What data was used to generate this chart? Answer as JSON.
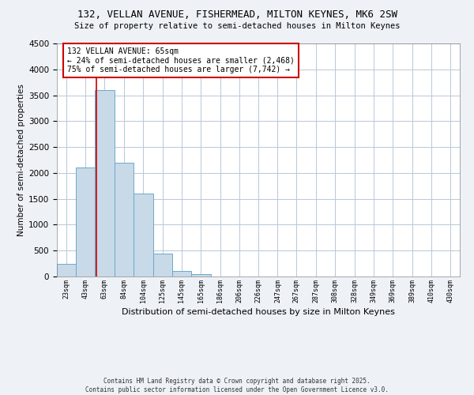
{
  "title1": "132, VELLAN AVENUE, FISHERMEAD, MILTON KEYNES, MK6 2SW",
  "title2": "Size of property relative to semi-detached houses in Milton Keynes",
  "xlabel": "Distribution of semi-detached houses by size in Milton Keynes",
  "ylabel": "Number of semi-detached properties",
  "categories": [
    "23sqm",
    "43sqm",
    "63sqm",
    "84sqm",
    "104sqm",
    "125sqm",
    "145sqm",
    "165sqm",
    "186sqm",
    "206sqm",
    "226sqm",
    "247sqm",
    "267sqm",
    "287sqm",
    "308sqm",
    "328sqm",
    "349sqm",
    "369sqm",
    "389sqm",
    "410sqm",
    "430sqm"
  ],
  "bar_lefts": [
    23,
    43,
    63,
    84,
    104,
    125,
    145,
    165,
    186,
    206,
    226,
    247,
    267,
    287,
    308,
    328,
    349,
    369,
    389,
    410,
    430
  ],
  "bar_widths": [
    20,
    20,
    21,
    20,
    21,
    20,
    20,
    21,
    20,
    20,
    21,
    20,
    20,
    21,
    20,
    21,
    20,
    20,
    21,
    20,
    20
  ],
  "bar_heights": [
    250,
    2100,
    3600,
    2200,
    1600,
    450,
    100,
    50,
    0,
    0,
    0,
    0,
    0,
    0,
    0,
    0,
    0,
    0,
    0,
    0,
    0
  ],
  "bar_color": "#c8d9e8",
  "bar_edgecolor": "#6fa8c8",
  "property_line_x": 65,
  "property_line_color": "#cc0000",
  "annotation_title": "132 VELLAN AVENUE: 65sqm",
  "annotation_line1": "← 24% of semi-detached houses are smaller (2,468)",
  "annotation_line2": "75% of semi-detached houses are larger (7,742) →",
  "annotation_box_edgecolor": "#cc0000",
  "ylim": [
    0,
    4500
  ],
  "xlim": [
    23,
    450
  ],
  "yticks": [
    0,
    500,
    1000,
    1500,
    2000,
    2500,
    3000,
    3500,
    4000,
    4500
  ],
  "footer1": "Contains HM Land Registry data © Crown copyright and database right 2025.",
  "footer2": "Contains public sector information licensed under the Open Government Licence v3.0.",
  "background_color": "#eef2f7",
  "plot_bg_color": "#ffffff",
  "grid_color": "#b8c8d8"
}
